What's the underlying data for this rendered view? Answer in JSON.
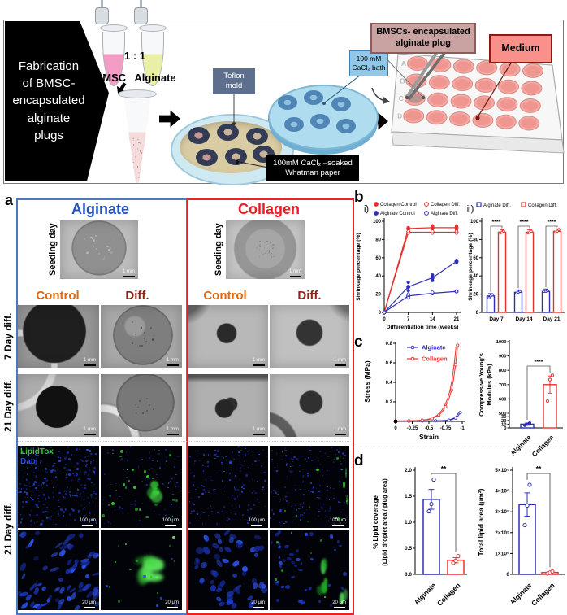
{
  "colors": {
    "alginate_blue": "#2E2EB8",
    "collagen_red": "#E8312E",
    "panel_border_blue": "#4A78C5",
    "panel_border_red": "#EC2222",
    "alginate_title_blue": "#2053C5",
    "collagen_title_red": "#EE1C24",
    "control_orange": "#E0690F",
    "diff_maroon": "#8E2418",
    "lipidtox_green": "#2ECC2E",
    "dapi_blue": "#2B4BE0",
    "medium_box_bg": "#F9908A",
    "medium_box_border": "#8B1A12",
    "plug_box_bg": "#C9A2A2",
    "plug_box_border": "#8C5B5B",
    "cacl2_box_bg": "#92C7E8",
    "cacl2_box_border": "#3E7FB5",
    "teflon_box_bg": "#5E6F8D"
  },
  "schematic": {
    "title_lines": [
      "Fabrication",
      "of BMSC-",
      "encapsulated",
      "alginate",
      "plugs"
    ],
    "ratio_label": "1 : 1",
    "bmsc_label": "BMSC",
    "alginate_label": "Alginate",
    "teflon_lines": [
      "Teflon",
      "mold"
    ],
    "cacl2_lines": [
      "100 mM",
      "CaCl₂ bath"
    ],
    "plug_lines": [
      "BMSCs- encapsulated",
      "alginate plug"
    ],
    "medium_label": "Medium",
    "whatman_lines": [
      "100mM CaCl₂ –soaked",
      "Whatman paper"
    ],
    "well_rows": [
      "A",
      "B",
      "C",
      "D"
    ]
  },
  "panel_a": {
    "label": "a",
    "alginate_title": "Alginate",
    "collagen_title": "Collagen",
    "control_header": "Control",
    "diff_header": "Diff.",
    "row_seeding": "Seeding day",
    "row_day7": "7 Day diff.",
    "row_day21": "21 Day diff.",
    "stain_lipidtox": "LipidTox",
    "stain_dapi": "Dapi",
    "scalebar_mm": "1 mm",
    "scalebar_100um": "100 μm",
    "scalebar_20um": "20 μm"
  },
  "panel_b": {
    "label": "b",
    "sub_i": "i)",
    "sub_ii": "ii)"
  },
  "panel_c": {
    "label": "c"
  },
  "panel_d": {
    "label": "d"
  },
  "chart_data": [
    {
      "id": "shrinkage_line",
      "type": "line",
      "xlabel": "Differentiation time (weeks)",
      "ylabel": "Shrinkage percentage (%)",
      "x_ticks": [
        0,
        7,
        14,
        21
      ],
      "y_ticks": [
        0,
        20,
        40,
        60,
        80,
        100
      ],
      "xlim": [
        0,
        21
      ],
      "ylim": [
        0,
        100
      ],
      "series": [
        {
          "name": "Collagen Control",
          "color": "#E8312E",
          "marker": "filled",
          "x": [
            0,
            7,
            14,
            21
          ],
          "y": [
            0,
            92,
            93,
            93
          ],
          "scatter": [
            [
              7,
              91
            ],
            [
              7,
              93
            ],
            [
              14,
              92
            ],
            [
              14,
              95
            ],
            [
              21,
              90
            ],
            [
              21,
              95
            ]
          ]
        },
        {
          "name": "Collagen Diff.",
          "color": "#E8312E",
          "marker": "open",
          "x": [
            0,
            7,
            14,
            21
          ],
          "y": [
            0,
            88,
            88,
            88
          ],
          "scatter": [
            [
              7,
              87
            ],
            [
              7,
              89
            ],
            [
              14,
              87
            ],
            [
              14,
              89
            ],
            [
              21,
              87
            ],
            [
              21,
              89
            ]
          ]
        },
        {
          "name": "Alginate Control",
          "color": "#2E2EB8",
          "marker": "filled",
          "x": [
            0,
            7,
            14,
            21
          ],
          "y": [
            0,
            28,
            38,
            56
          ],
          "scatter": [
            [
              7,
              33
            ],
            [
              7,
              24
            ],
            [
              14,
              41
            ],
            [
              14,
              35
            ],
            [
              21,
              55
            ],
            [
              21,
              57
            ]
          ]
        },
        {
          "name": "Alginate Diff.",
          "color": "#2E2EB8",
          "marker": "open",
          "x": [
            0,
            7,
            14,
            21
          ],
          "y": [
            0,
            18,
            21,
            23
          ],
          "scatter": [
            [
              7,
              16
            ],
            [
              7,
              20
            ],
            [
              14,
              21
            ],
            [
              14,
              22
            ],
            [
              21,
              23
            ]
          ]
        }
      ]
    },
    {
      "id": "shrinkage_bar",
      "type": "grouped_bar",
      "ylabel": "Shrinkage percentage (%)",
      "y_ticks": [
        0,
        20,
        40,
        60,
        80,
        100
      ],
      "ylim": [
        0,
        100
      ],
      "categories": [
        "Day 7",
        "Day 14",
        "Day 21"
      ],
      "series": [
        {
          "name": "Alginate Diff.",
          "color": "#2E2EB8",
          "values": [
            18,
            22,
            23
          ],
          "points": [
            [
              16,
              18,
              19
            ],
            [
              21,
              22,
              23
            ],
            [
              23,
              23,
              24
            ]
          ]
        },
        {
          "name": "Collagen Diff.",
          "color": "#E8312E",
          "values": [
            88,
            88,
            89
          ],
          "points": [
            [
              87,
              88,
              89
            ],
            [
              87,
              88,
              89
            ],
            [
              88,
              89,
              91
            ]
          ]
        }
      ],
      "significance": [
        "****",
        "****",
        "****"
      ]
    },
    {
      "id": "stress_strain",
      "type": "line",
      "xlabel": "Strain",
      "ylabel": "Stress (MPa)",
      "x_ticks": [
        0,
        -0.25,
        -0.5,
        -0.75,
        -1
      ],
      "y_ticks": [
        0.2,
        0.4,
        0.6,
        0.8
      ],
      "xlim": [
        0,
        -1
      ],
      "ylim": [
        0,
        0.8
      ],
      "series": [
        {
          "name": "Alginate",
          "color": "#2E2EB8",
          "marker": "open",
          "x": [
            0,
            -0.1,
            -0.2,
            -0.3,
            -0.4,
            -0.5,
            -0.6,
            -0.7,
            -0.8,
            -0.85,
            -0.9,
            -0.94,
            -0.97
          ],
          "y": [
            0.003,
            0.003,
            0.003,
            0.004,
            0.004,
            0.005,
            0.006,
            0.008,
            0.012,
            0.02,
            0.035,
            0.058,
            0.09
          ]
        },
        {
          "name": "Collagen",
          "color": "#E8312E",
          "marker": "open",
          "x": [
            0,
            -0.1,
            -0.2,
            -0.3,
            -0.4,
            -0.5,
            -0.55,
            -0.6,
            -0.65,
            -0.7,
            -0.75,
            -0.8,
            -0.84,
            -0.87,
            -0.9,
            -0.92,
            -0.93
          ],
          "y": [
            0.005,
            0.005,
            0.006,
            0.008,
            0.012,
            0.02,
            0.03,
            0.045,
            0.065,
            0.1,
            0.15,
            0.23,
            0.32,
            0.43,
            0.58,
            0.7,
            0.78
          ]
        }
      ]
    },
    {
      "id": "modulus_bar",
      "type": "bar_broken_axis",
      "ylabel_lines": [
        "Compressive Young's",
        "Modulus (kPa)"
      ],
      "y_ticks": [
        0,
        10,
        20,
        30,
        500,
        600,
        700,
        800,
        900,
        1000
      ],
      "categories": [
        "Alginate",
        "Collagen"
      ],
      "values": [
        10,
        700
      ],
      "errors": [
        3,
        60
      ],
      "bar_colors": [
        "#2E2EB8",
        "#E8312E"
      ],
      "points": [
        [
          7,
          10,
          13
        ],
        [
          585,
          735,
          765
        ]
      ],
      "significance": "****"
    },
    {
      "id": "lipid_coverage",
      "type": "bar",
      "ylabel_lines": [
        "% Lipid coverage",
        "(Lipid droplet area / plug area)"
      ],
      "y_ticks": [
        0,
        0.5,
        1,
        1.5,
        2
      ],
      "y_tick_labels": [
        "0.0",
        "0.5",
        "1.0",
        "1.5",
        "2.0"
      ],
      "ylim": [
        0,
        2
      ],
      "categories": [
        "Alginate",
        "Collagen"
      ],
      "values": [
        1.44,
        0.27
      ],
      "errors": [
        0.19,
        0.05
      ],
      "bar_colors": [
        "#2E2EB8",
        "#E8312E"
      ],
      "points": [
        [
          1.21,
          1.35,
          1.82
        ],
        [
          0.22,
          0.26,
          0.35
        ]
      ],
      "significance": "**"
    },
    {
      "id": "lipid_area",
      "type": "bar",
      "ylabel_lines": [
        "Total lipid area (μm²)"
      ],
      "y_ticks": [
        0,
        100000,
        200000,
        300000,
        400000,
        500000
      ],
      "y_tick_labels": [
        "0",
        "1×10⁵",
        "2×10⁵",
        "3×10⁵",
        "4×10⁵",
        "5×10⁵"
      ],
      "ylim": [
        0,
        500000
      ],
      "categories": [
        "Alginate",
        "Collagen"
      ],
      "values": [
        335000,
        9000
      ],
      "errors": [
        56000,
        4000
      ],
      "bar_colors": [
        "#2E2EB8",
        "#E8312E"
      ],
      "points": [
        [
          236000,
          330000,
          430000
        ],
        [
          4000,
          9000,
          14000
        ]
      ],
      "significance": "**"
    }
  ]
}
